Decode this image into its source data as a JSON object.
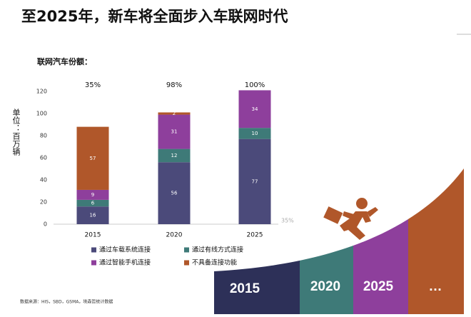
{
  "title": "至2025年，新车将全面步入车联网时代",
  "chart_data": {
    "type": "stacked-bar",
    "title": "联网汽车份额：",
    "y_label": "单位：百万辆",
    "categories": [
      "2015",
      "2020",
      "2025"
    ],
    "top_labels": [
      "35%",
      "98%",
      "100%"
    ],
    "series": [
      {
        "name": "通过车载系统连接",
        "color": "#4b4a7a",
        "values": [
          16,
          56,
          77
        ]
      },
      {
        "name": "通过有线方式连接",
        "color": "#3e7a78",
        "values": [
          6,
          12,
          10
        ]
      },
      {
        "name": "通过智能手机连接",
        "color": "#8e3f9c",
        "values": [
          9,
          31,
          34
        ]
      },
      {
        "name": "不具备连接功能",
        "color": "#b0572a",
        "values": [
          57,
          2,
          null
        ]
      }
    ],
    "ylim": [
      0,
      120
    ],
    "yticks": [
      0,
      20,
      40,
      60,
      80,
      100,
      120
    ],
    "stray_label": "35%"
  },
  "source": "数据来源：HIS，SBD，GSMA，埃森哲统计数据",
  "graphic": {
    "steps": [
      "2015",
      "2020",
      "2025",
      "…"
    ]
  }
}
